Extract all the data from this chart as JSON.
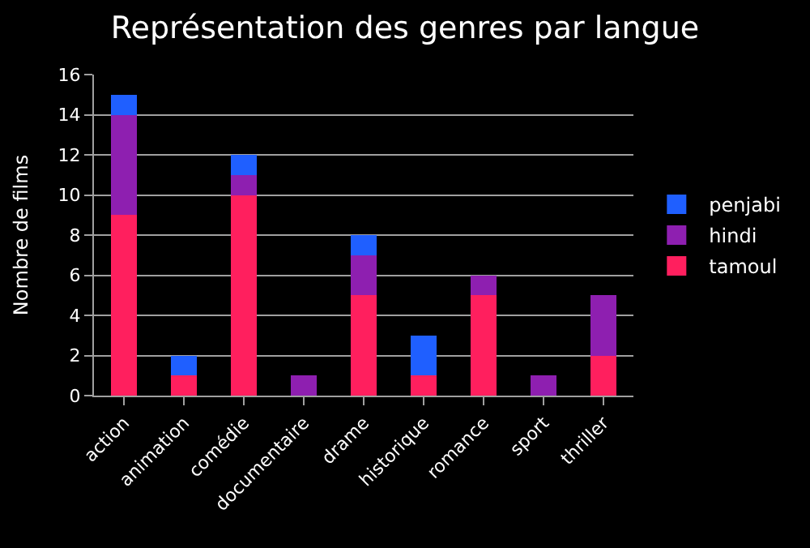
{
  "chart_data": {
    "type": "bar",
    "stacked": true,
    "title": "Représentation des genres par langue",
    "ylabel": "Nombre de films",
    "categories": [
      "action",
      "animation",
      "comédie",
      "documentaire",
      "drame",
      "historique",
      "romance",
      "sport",
      "thriller"
    ],
    "series": [
      {
        "name": "tamoul",
        "color": "#ff1f5e",
        "values": [
          9,
          1,
          10,
          0,
          5,
          1,
          5,
          0,
          2
        ]
      },
      {
        "name": "hindi",
        "color": "#8e1fb0",
        "values": [
          5,
          0,
          1,
          1,
          2,
          0,
          1,
          1,
          3
        ]
      },
      {
        "name": "penjabi",
        "color": "#1f5fff",
        "values": [
          1,
          1,
          1,
          0,
          1,
          2,
          0,
          0,
          0
        ]
      }
    ],
    "ylim": [
      0,
      16
    ],
    "yticks": [
      0,
      2,
      4,
      6,
      8,
      10,
      12,
      14,
      16
    ],
    "grid": "y",
    "legend": "right"
  }
}
